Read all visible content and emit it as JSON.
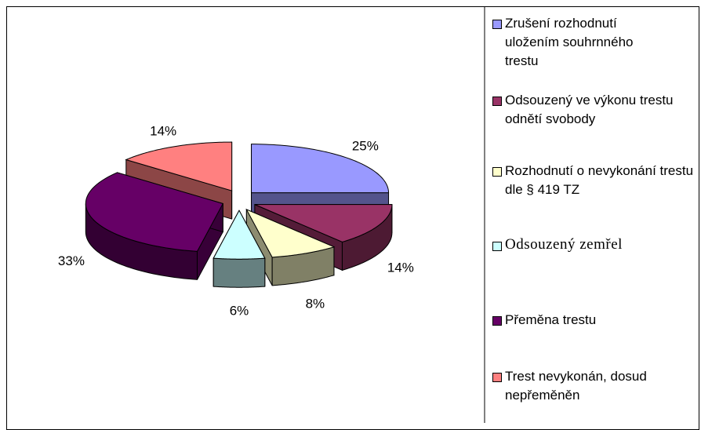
{
  "chart_data": {
    "type": "pie3d",
    "categories": [
      "Zrušení rozhodnutí uložením souhrnného trestu",
      "Odsouzený ve výkonu trestu odnětí svobody",
      "Rozhodnutí o nevykonání trestu dle § 419 TZ",
      "Odsouzený zemřel",
      "Přeměna trestu",
      "Trest nevykonán, dosud nepřeměněn"
    ],
    "values": [
      25,
      14,
      8,
      6,
      33,
      14
    ],
    "value_labels": [
      "25%",
      "14%",
      "8%",
      "6%",
      "33%",
      "14%"
    ],
    "colors": [
      "#9999ff",
      "#993366",
      "#ffffcc",
      "#ccffff",
      "#660066",
      "#ff8080"
    ],
    "legend": "right"
  }
}
